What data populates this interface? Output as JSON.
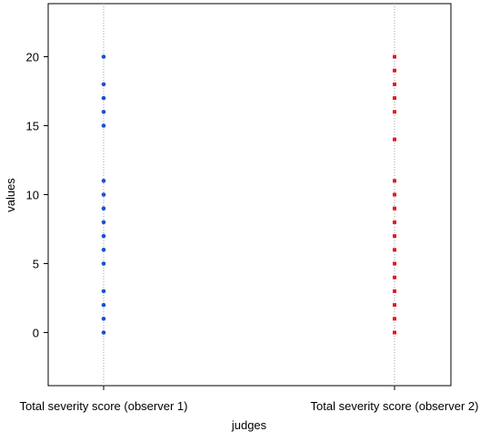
{
  "chart_data": {
    "type": "scatter",
    "xlabel": "judges",
    "ylabel": "values",
    "categories": [
      "Total severity score (observer 1)",
      "Total severity score (observer 2)"
    ],
    "ylim": [
      -4,
      24
    ],
    "yticks": [
      0,
      5,
      10,
      15,
      20
    ],
    "grid": "vertical dotted lines at each category",
    "series": [
      {
        "category": "Total severity score (observer 1)",
        "color": "#1f4fcc",
        "marker": "circle",
        "values": [
          0,
          1,
          2,
          3,
          5,
          6,
          7,
          8,
          9,
          10,
          11,
          15,
          16,
          17,
          18,
          20
        ]
      },
      {
        "category": "Total severity score (observer 2)",
        "color": "#e8171d",
        "marker": "square",
        "values": [
          0,
          1,
          2,
          3,
          4,
          5,
          6,
          7,
          8,
          9,
          10,
          11,
          14,
          16,
          17,
          18,
          19,
          20
        ]
      }
    ]
  }
}
